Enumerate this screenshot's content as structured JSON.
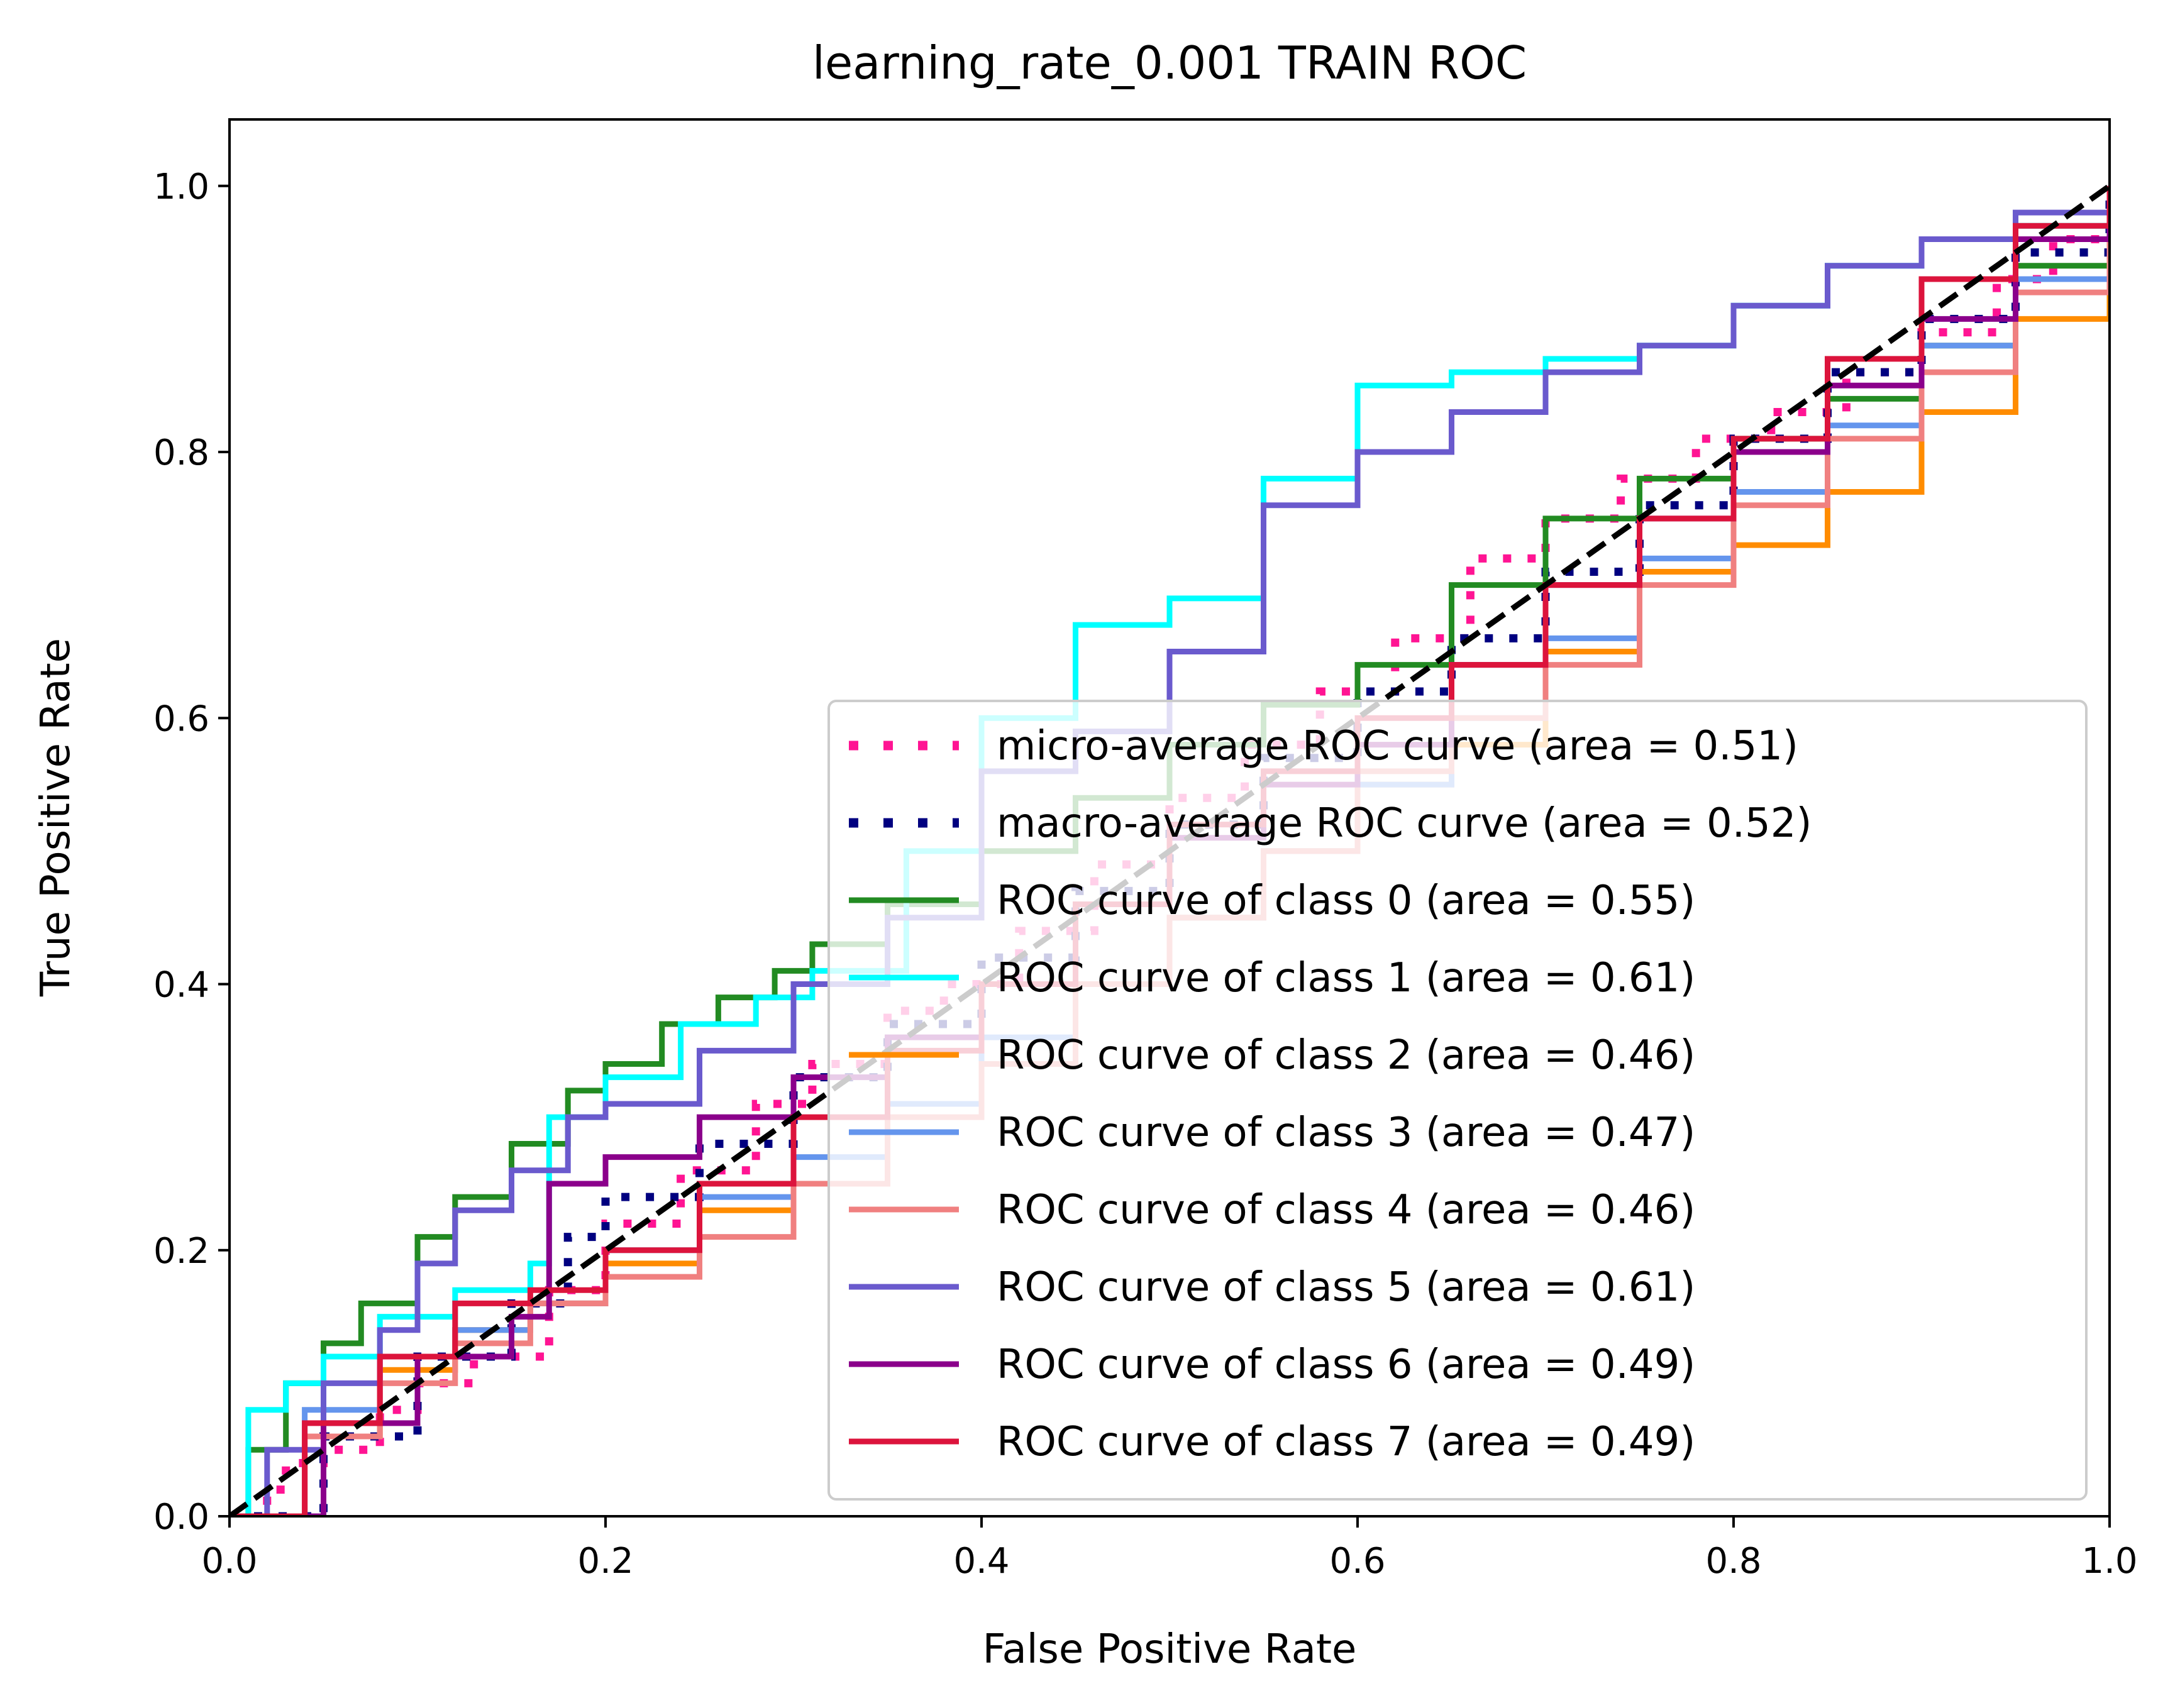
{
  "chart_data": {
    "type": "line",
    "title": "learning_rate_0.001 TRAIN ROC",
    "xlabel": "False Positive Rate",
    "ylabel": "True Positive Rate",
    "xlim": [
      0.0,
      1.0
    ],
    "ylim": [
      0.0,
      1.05
    ],
    "xticks": [
      "0.0",
      "0.2",
      "0.4",
      "0.6",
      "0.8",
      "1.0"
    ],
    "yticks": [
      "0.0",
      "0.2",
      "0.4",
      "0.6",
      "0.8",
      "1.0"
    ],
    "grid": false,
    "legend_position": "lower right",
    "series": [
      {
        "name": "micro-average ROC curve (area = 0.51)",
        "color": "#ff1493",
        "style": "dotted",
        "x": [
          0.0,
          0.02,
          0.03,
          0.05,
          0.08,
          0.1,
          0.13,
          0.17,
          0.2,
          0.24,
          0.28,
          0.31,
          0.35,
          0.38,
          0.42,
          0.46,
          0.5,
          0.54,
          0.58,
          0.62,
          0.66,
          0.7,
          0.74,
          0.78,
          0.82,
          0.86,
          0.9,
          0.94,
          0.97,
          1.0
        ],
        "y": [
          0.0,
          0.02,
          0.04,
          0.05,
          0.08,
          0.1,
          0.12,
          0.17,
          0.22,
          0.26,
          0.31,
          0.34,
          0.38,
          0.4,
          0.44,
          0.49,
          0.54,
          0.58,
          0.62,
          0.66,
          0.72,
          0.75,
          0.78,
          0.81,
          0.83,
          0.86,
          0.89,
          0.93,
          0.96,
          1.0
        ]
      },
      {
        "name": "macro-average ROC curve (area = 0.52)",
        "color": "#000080",
        "style": "dotted",
        "x": [
          0.0,
          0.05,
          0.1,
          0.15,
          0.18,
          0.2,
          0.25,
          0.3,
          0.35,
          0.4,
          0.45,
          0.5,
          0.55,
          0.6,
          0.65,
          0.7,
          0.75,
          0.8,
          0.85,
          0.9,
          0.95,
          1.0
        ],
        "y": [
          0.0,
          0.06,
          0.12,
          0.16,
          0.21,
          0.24,
          0.28,
          0.33,
          0.37,
          0.42,
          0.47,
          0.52,
          0.57,
          0.62,
          0.66,
          0.71,
          0.76,
          0.81,
          0.86,
          0.9,
          0.95,
          1.0
        ]
      },
      {
        "name": "ROC curve of class 0 (area = 0.55)",
        "color": "#228b22",
        "style": "solid",
        "x": [
          0.0,
          0.01,
          0.03,
          0.05,
          0.07,
          0.1,
          0.12,
          0.15,
          0.18,
          0.2,
          0.23,
          0.26,
          0.29,
          0.31,
          0.35,
          0.4,
          0.45,
          0.5,
          0.55,
          0.6,
          0.65,
          0.7,
          0.75,
          0.8,
          0.85,
          0.9,
          0.95,
          1.0
        ],
        "y": [
          0.0,
          0.05,
          0.1,
          0.13,
          0.16,
          0.21,
          0.24,
          0.28,
          0.32,
          0.34,
          0.37,
          0.39,
          0.41,
          0.43,
          0.46,
          0.5,
          0.54,
          0.58,
          0.61,
          0.64,
          0.7,
          0.75,
          0.78,
          0.81,
          0.84,
          0.88,
          0.94,
          1.0
        ]
      },
      {
        "name": "ROC curve of class 1 (area = 0.61)",
        "color": "#00ffff",
        "style": "solid",
        "x": [
          0.0,
          0.01,
          0.03,
          0.05,
          0.08,
          0.12,
          0.16,
          0.17,
          0.2,
          0.24,
          0.28,
          0.31,
          0.36,
          0.4,
          0.45,
          0.5,
          0.55,
          0.6,
          0.65,
          0.7,
          0.75,
          0.8,
          0.85,
          0.9,
          0.95,
          1.0
        ],
        "y": [
          0.0,
          0.08,
          0.1,
          0.12,
          0.15,
          0.17,
          0.19,
          0.3,
          0.33,
          0.37,
          0.39,
          0.41,
          0.5,
          0.6,
          0.67,
          0.69,
          0.78,
          0.85,
          0.86,
          0.87,
          0.88,
          0.91,
          0.94,
          0.96,
          0.97,
          1.0
        ]
      },
      {
        "name": "ROC curve of class 2 (area = 0.46)",
        "color": "#ff8c00",
        "style": "solid",
        "x": [
          0.0,
          0.04,
          0.08,
          0.12,
          0.16,
          0.2,
          0.25,
          0.3,
          0.35,
          0.4,
          0.45,
          0.5,
          0.55,
          0.6,
          0.65,
          0.7,
          0.75,
          0.8,
          0.85,
          0.9,
          0.95,
          1.0
        ],
        "y": [
          0.0,
          0.06,
          0.11,
          0.14,
          0.16,
          0.19,
          0.23,
          0.25,
          0.31,
          0.34,
          0.4,
          0.45,
          0.5,
          0.55,
          0.58,
          0.65,
          0.71,
          0.73,
          0.77,
          0.83,
          0.9,
          1.0
        ]
      },
      {
        "name": "ROC curve of class 3 (area = 0.47)",
        "color": "#6495ed",
        "style": "solid",
        "x": [
          0.0,
          0.04,
          0.08,
          0.12,
          0.16,
          0.2,
          0.25,
          0.3,
          0.35,
          0.4,
          0.45,
          0.5,
          0.55,
          0.6,
          0.65,
          0.7,
          0.75,
          0.8,
          0.85,
          0.9,
          0.95,
          1.0
        ],
        "y": [
          0.0,
          0.08,
          0.12,
          0.14,
          0.16,
          0.2,
          0.24,
          0.27,
          0.31,
          0.36,
          0.4,
          0.45,
          0.5,
          0.55,
          0.6,
          0.66,
          0.72,
          0.77,
          0.82,
          0.88,
          0.93,
          1.0
        ]
      },
      {
        "name": "ROC curve of class 4 (area = 0.46)",
        "color": "#f08080",
        "style": "solid",
        "x": [
          0.0,
          0.04,
          0.08,
          0.12,
          0.16,
          0.2,
          0.25,
          0.3,
          0.35,
          0.4,
          0.45,
          0.5,
          0.55,
          0.6,
          0.65,
          0.7,
          0.75,
          0.8,
          0.85,
          0.9,
          0.95,
          1.0
        ],
        "y": [
          0.0,
          0.06,
          0.1,
          0.13,
          0.16,
          0.18,
          0.21,
          0.25,
          0.3,
          0.34,
          0.4,
          0.45,
          0.5,
          0.56,
          0.6,
          0.64,
          0.7,
          0.76,
          0.81,
          0.86,
          0.92,
          1.0
        ]
      },
      {
        "name": "ROC curve of class 5 (area = 0.61)",
        "color": "#6a5acd",
        "style": "solid",
        "x": [
          0.0,
          0.02,
          0.05,
          0.08,
          0.1,
          0.12,
          0.15,
          0.18,
          0.2,
          0.25,
          0.3,
          0.35,
          0.4,
          0.45,
          0.5,
          0.55,
          0.6,
          0.65,
          0.7,
          0.75,
          0.8,
          0.85,
          0.9,
          0.95,
          1.0
        ],
        "y": [
          0.0,
          0.05,
          0.1,
          0.14,
          0.19,
          0.23,
          0.26,
          0.3,
          0.31,
          0.35,
          0.4,
          0.45,
          0.56,
          0.59,
          0.65,
          0.76,
          0.8,
          0.83,
          0.86,
          0.88,
          0.91,
          0.94,
          0.96,
          0.98,
          1.0
        ]
      },
      {
        "name": "ROC curve of class 6 (area = 0.49)",
        "color": "#8b008b",
        "style": "solid",
        "x": [
          0.0,
          0.05,
          0.1,
          0.15,
          0.17,
          0.2,
          0.25,
          0.3,
          0.35,
          0.4,
          0.45,
          0.5,
          0.55,
          0.6,
          0.65,
          0.7,
          0.75,
          0.8,
          0.85,
          0.9,
          0.95,
          1.0
        ],
        "y": [
          0.0,
          0.07,
          0.12,
          0.15,
          0.25,
          0.27,
          0.3,
          0.33,
          0.36,
          0.4,
          0.46,
          0.51,
          0.55,
          0.58,
          0.64,
          0.7,
          0.75,
          0.8,
          0.85,
          0.9,
          0.96,
          1.0
        ]
      },
      {
        "name": "ROC curve of class 7 (area = 0.49)",
        "color": "#dc143c",
        "style": "solid",
        "x": [
          0.0,
          0.04,
          0.08,
          0.12,
          0.16,
          0.2,
          0.25,
          0.3,
          0.35,
          0.4,
          0.45,
          0.5,
          0.55,
          0.6,
          0.65,
          0.7,
          0.75,
          0.8,
          0.85,
          0.9,
          0.95,
          1.0
        ],
        "y": [
          0.0,
          0.07,
          0.12,
          0.16,
          0.17,
          0.2,
          0.25,
          0.3,
          0.35,
          0.4,
          0.46,
          0.52,
          0.56,
          0.6,
          0.64,
          0.7,
          0.75,
          0.81,
          0.87,
          0.93,
          0.97,
          1.0
        ]
      }
    ],
    "reference_line": {
      "x": [
        0.0,
        1.0
      ],
      "y": [
        0.0,
        1.0
      ],
      "color": "#000000",
      "style": "dashed"
    }
  }
}
